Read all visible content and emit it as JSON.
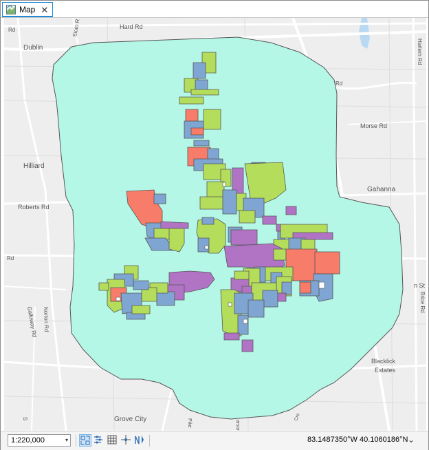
{
  "tab": {
    "label": "Map",
    "icon": "map-icon",
    "close_icon": "close-icon",
    "close_glyph": "✕"
  },
  "map": {
    "colors": {
      "buffer_fill": "#b5f7e6",
      "buffer_stroke": "#555555",
      "green": "#b5dd5c",
      "blue": "#7fa6d2",
      "purple": "#b174c5",
      "salmon": "#f77d6a",
      "road": "#ffffff",
      "background": "#eeeeee",
      "water": "#b9d9f3"
    },
    "labels": {
      "hard_rd": "Hard Rd",
      "dublin": "Dublin",
      "sioto_river": "Sioto R",
      "harlem_rd": "Harlem Rd",
      "rd_top": "Rd",
      "rd_right": "Rd",
      "morse_rd": "Morse Rd",
      "hilliard": "Hilliard",
      "gahanna": "Gahanna",
      "roberts_rd": "Roberts Rd",
      "rd_left": "Rd",
      "n_st": "n St",
      "brice_rd": "Brice Rd",
      "galloway_rd": "Galloway Rd",
      "norton_rd": "Norton Rd",
      "blacklick": "Blacklick",
      "estates": "Estates",
      "grove_city": "Grove City",
      "pike": "Pike",
      "s_partial": "S",
      "arson": "arson",
      "cre": "Cre"
    }
  },
  "statusbar": {
    "scale_value": "1:220,000",
    "scale_dropdown_glyph": "▾",
    "coordinates": "83.1487350°W 40.1060186°N",
    "units_dropdown_glyph": "⌄",
    "tools": [
      "fixed-zoom-icon",
      "snapping-icon",
      "grid-icon",
      "constraint-icon",
      "north-arrow-icon"
    ]
  }
}
